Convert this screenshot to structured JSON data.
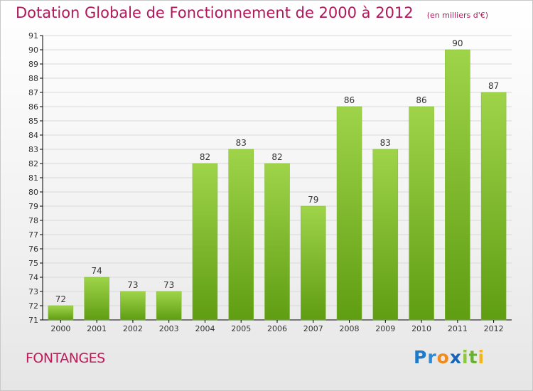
{
  "header": {
    "title": "Dotation Globale de Fonctionnement de 2000 à 2012",
    "unit": "(en milliers d'€)"
  },
  "footer": {
    "commune": "FONTANGES",
    "brand": "Proxiti"
  },
  "colors": {
    "title": "#b0185a",
    "bar_light": "#9fd44a",
    "bar_dark": "#5f9d12",
    "axis": "#000000",
    "grid": "#d9d9d9"
  },
  "chart_data": {
    "type": "bar",
    "categories": [
      "2000",
      "2001",
      "2002",
      "2003",
      "2004",
      "2005",
      "2006",
      "2007",
      "2008",
      "2009",
      "2010",
      "2011",
      "2012"
    ],
    "values": [
      72,
      74,
      73,
      73,
      82,
      83,
      82,
      79,
      86,
      83,
      86,
      90,
      87
    ],
    "ylim": [
      71,
      91
    ],
    "yticks": [
      71,
      72,
      73,
      74,
      75,
      76,
      77,
      78,
      79,
      80,
      81,
      82,
      83,
      84,
      85,
      86,
      87,
      88,
      89,
      90,
      91
    ],
    "title": "Dotation Globale de Fonctionnement de 2000 à 2012",
    "xlabel": "",
    "ylabel": "",
    "grid": true,
    "data_labels": true
  }
}
